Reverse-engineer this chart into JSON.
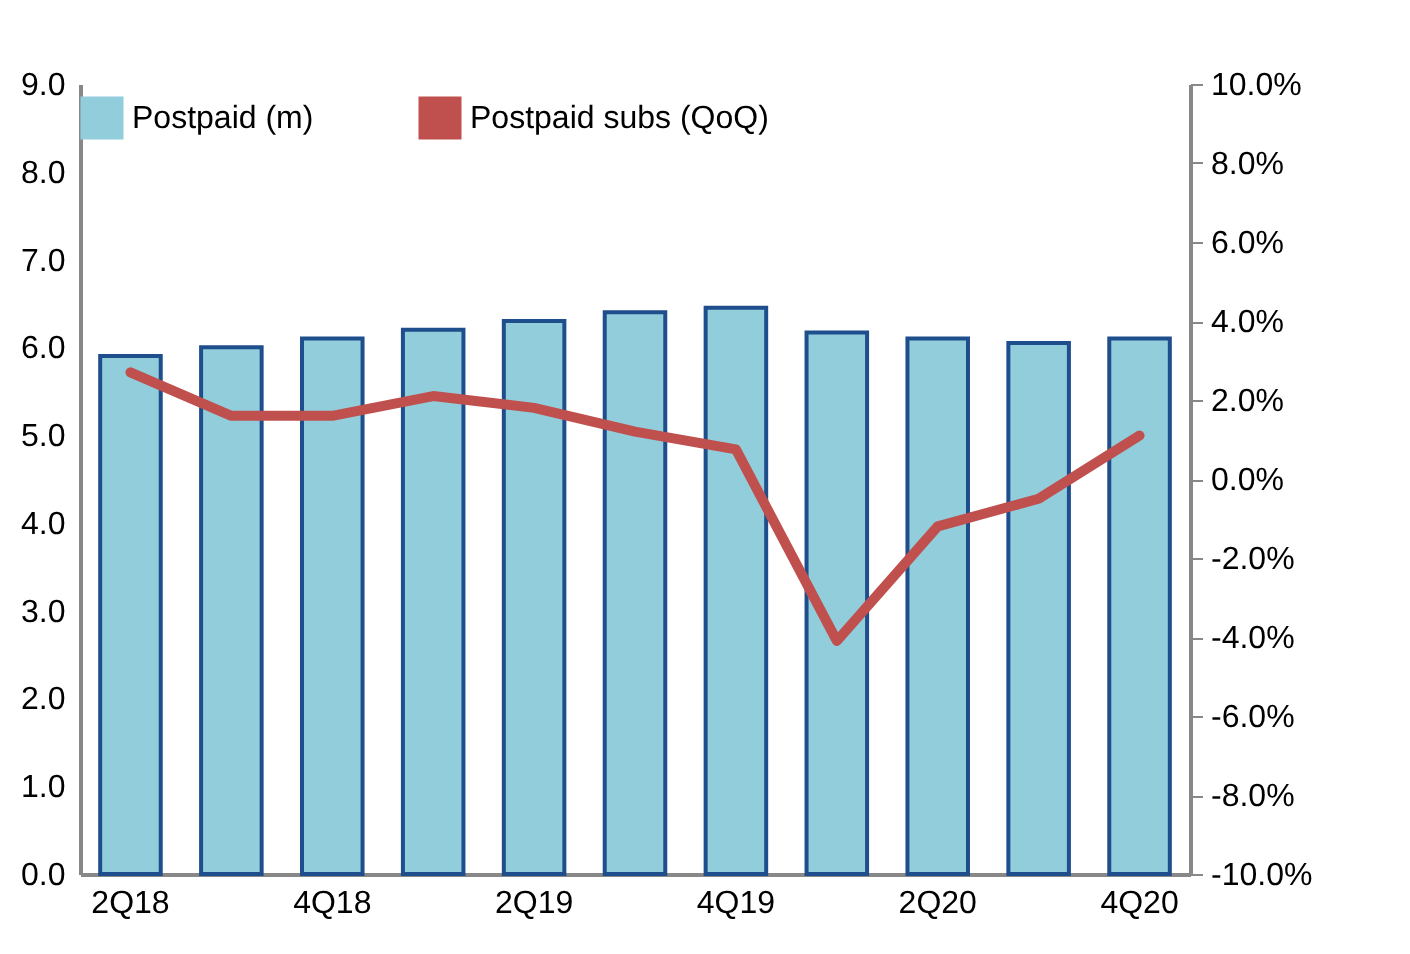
{
  "chart_data": {
    "type": "bar",
    "categories": [
      "2Q18",
      null,
      "4Q18",
      null,
      "2Q19",
      null,
      "4Q19",
      null,
      "2Q20",
      null,
      "4Q20"
    ],
    "series": [
      {
        "name": "Postpaid (m)",
        "color": "#92cddc",
        "values": [
          5.9,
          6.0,
          6.1,
          6.2,
          6.3,
          6.4,
          6.45,
          6.17,
          6.1,
          6.05,
          6.1
        ]
      },
      {
        "name": "Postpaid subs (QoQ)",
        "type": "line",
        "axis": "y2",
        "color": "#c0504d",
        "values": [
          2.7,
          1.6,
          1.6,
          2.1,
          1.8,
          1.2,
          0.75,
          -4.1,
          -1.2,
          -0.5,
          1.1
        ]
      }
    ],
    "ylim": [
      0,
      9
    ],
    "yticks": [
      {
        "value": 0,
        "label": "0.0"
      },
      {
        "value": 1,
        "label": "1.0"
      },
      {
        "value": 2,
        "label": "2.0"
      },
      {
        "value": 3,
        "label": "3.0"
      },
      {
        "value": 4,
        "label": "4.0"
      },
      {
        "value": 5,
        "label": "5.0"
      },
      {
        "value": 6,
        "label": "6.0"
      },
      {
        "value": 7,
        "label": "7.0"
      },
      {
        "value": 8,
        "label": "8.0"
      },
      {
        "value": 9,
        "label": "9.0"
      }
    ],
    "y2lim": [
      -10,
      10
    ],
    "y2ticks": [
      {
        "value": -10,
        "label": "-10.0%"
      },
      {
        "value": -8,
        "label": "-8.0%"
      },
      {
        "value": -6,
        "label": "-6.0%"
      },
      {
        "value": -4,
        "label": "-4.0%"
      },
      {
        "value": -2,
        "label": "-2.0%"
      },
      {
        "value": 0,
        "label": "0.0%"
      },
      {
        "value": 2,
        "label": "2.0%"
      },
      {
        "value": 4,
        "label": "4.0%"
      },
      {
        "value": 6,
        "label": "6.0%"
      },
      {
        "value": 8,
        "label": "8.0%"
      },
      {
        "value": 10,
        "label": "10.0%"
      }
    ],
    "grid": false,
    "legend": "top",
    "line_style": "solid",
    "marker": "none"
  }
}
